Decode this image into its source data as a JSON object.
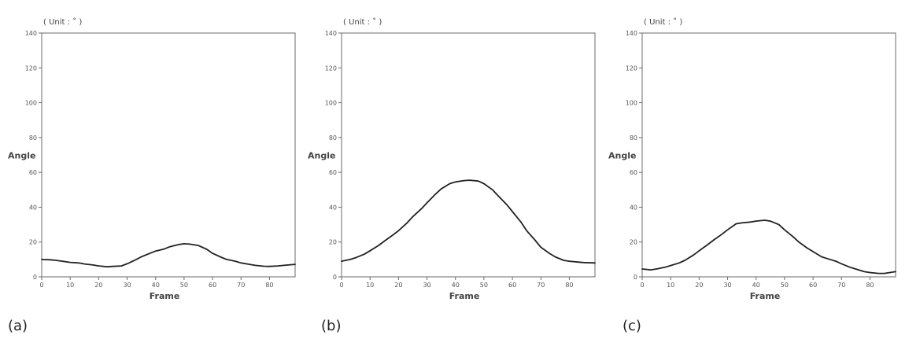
{
  "chart_data": [
    {
      "type": "line",
      "panel_label": "(a)",
      "unit_note": "( Unit : ˚ )",
      "xlabel": "Frame",
      "ylabel": "Angle",
      "xlim": [
        0,
        89
      ],
      "ylim": [
        0,
        140
      ],
      "xticks": [
        "0",
        "10",
        "20",
        "30",
        "40",
        "50",
        "60",
        "70",
        "80"
      ],
      "yticks": [
        "0",
        "20",
        "40",
        "60",
        "80",
        "100",
        "120",
        "140"
      ],
      "series": [
        {
          "x": [
            0,
            3,
            5,
            8,
            10,
            13,
            15,
            18,
            20,
            23,
            25,
            28,
            30,
            33,
            35,
            38,
            40,
            43,
            45,
            48,
            50,
            52,
            55,
            58,
            60,
            63,
            65,
            68,
            70,
            73,
            75,
            78,
            80,
            83,
            85,
            89
          ],
          "values": [
            10,
            9.8,
            9.5,
            8.8,
            8.3,
            8,
            7.4,
            6.8,
            6.3,
            5.8,
            6,
            6.3,
            7.5,
            9.8,
            11.5,
            13.5,
            14.8,
            16,
            17.3,
            18.5,
            19,
            18.8,
            18,
            15.8,
            13.5,
            11.3,
            10,
            9,
            8,
            7.2,
            6.6,
            6.1,
            6,
            6.3,
            6.6,
            7.2
          ]
        }
      ]
    },
    {
      "type": "line",
      "panel_label": "(b)",
      "unit_note": "( Unit : ˚ )",
      "xlabel": "Frame",
      "ylabel": "Angle",
      "xlim": [
        0,
        89
      ],
      "ylim": [
        0,
        140
      ],
      "xticks": [
        "0",
        "10",
        "20",
        "30",
        "40",
        "50",
        "60",
        "70",
        "80"
      ],
      "yticks": [
        "0",
        "20",
        "40",
        "60",
        "80",
        "100",
        "120",
        "140"
      ],
      "series": [
        {
          "x": [
            0,
            3,
            5,
            8,
            10,
            13,
            15,
            18,
            20,
            23,
            25,
            28,
            30,
            33,
            35,
            38,
            40,
            43,
            45,
            48,
            50,
            53,
            55,
            58,
            60,
            63,
            65,
            68,
            70,
            73,
            75,
            78,
            80,
            83,
            85,
            89
          ],
          "values": [
            9,
            10,
            11,
            13,
            15,
            18,
            20.5,
            24,
            26.5,
            31,
            34.5,
            39,
            42.5,
            47.5,
            50.5,
            53.5,
            54.5,
            55.3,
            55.5,
            55,
            53.5,
            50,
            46.5,
            41.5,
            37.5,
            31.5,
            26.5,
            21,
            17,
            13.5,
            11.5,
            9.5,
            9,
            8.5,
            8.2,
            8
          ]
        }
      ]
    },
    {
      "type": "line",
      "panel_label": "(c)",
      "unit_note": "( Unit : ˚ )",
      "xlabel": "Frame",
      "ylabel": "Angle",
      "xlim": [
        0,
        89
      ],
      "ylim": [
        0,
        140
      ],
      "xticks": [
        "0",
        "10",
        "20",
        "30",
        "40",
        "50",
        "60",
        "70",
        "80"
      ],
      "yticks": [
        "0",
        "20",
        "40",
        "60",
        "80",
        "100",
        "120",
        "140"
      ],
      "series": [
        {
          "x": [
            0,
            3,
            5,
            8,
            10,
            13,
            15,
            18,
            20,
            23,
            25,
            28,
            30,
            33,
            35,
            38,
            40,
            43,
            45,
            48,
            50,
            53,
            55,
            58,
            60,
            63,
            65,
            68,
            70,
            73,
            75,
            78,
            80,
            83,
            85,
            89
          ],
          "values": [
            4.5,
            4,
            4.5,
            5.5,
            6.5,
            8,
            9.5,
            12.5,
            15,
            18.5,
            21,
            24.5,
            27,
            30.5,
            31,
            31.5,
            32,
            32.5,
            32,
            30,
            27,
            23,
            20,
            16.5,
            14.5,
            11.5,
            10.5,
            9,
            7.5,
            5.5,
            4.5,
            3,
            2.5,
            2,
            2,
            3
          ]
        }
      ]
    }
  ]
}
